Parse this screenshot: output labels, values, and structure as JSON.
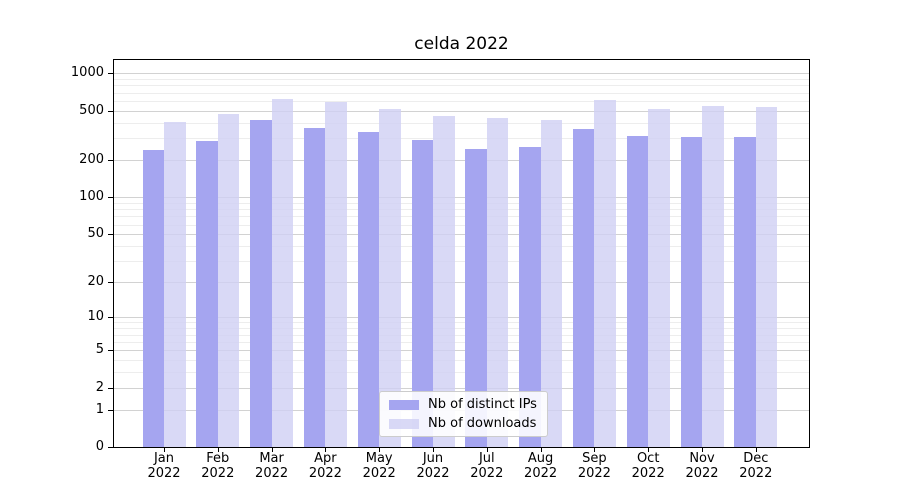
{
  "title": "celda 2022",
  "legend": {
    "position": "lower center",
    "items": [
      {
        "label": "Nb of distinct IPs",
        "color": "#a5a5f0"
      },
      {
        "label": "Nb of downloads",
        "color": "#d9d9f6"
      }
    ]
  },
  "chart_data": {
    "type": "bar",
    "title": "celda 2022",
    "yscale": "symlog (position proportional to log(1+value))",
    "grid": true,
    "categories": [
      "Jan 2022",
      "Feb 2022",
      "Mar 2022",
      "Apr 2022",
      "May 2022",
      "Jun 2022",
      "Jul 2022",
      "Aug 2022",
      "Sep 2022",
      "Oct 2022",
      "Nov 2022",
      "Dec 2022"
    ],
    "series": [
      {
        "name": "Nb of distinct IPs",
        "color": "#a5a5f0",
        "values": [
          241,
          283,
          420,
          366,
          337,
          290,
          244,
          253,
          359,
          315,
          309,
          309
        ]
      },
      {
        "name": "Nb of downloads",
        "color": "#d9d9f6",
        "values": [
          409,
          469,
          626,
          588,
          519,
          452,
          441,
          421,
          606,
          515,
          549,
          535
        ]
      }
    ],
    "yticks": [
      0,
      1,
      2,
      5,
      10,
      20,
      50,
      100,
      200,
      500,
      1000
    ],
    "minor_yticks": [
      3,
      4,
      6,
      7,
      8,
      9,
      30,
      40,
      60,
      70,
      80,
      90,
      300,
      400,
      600,
      700,
      800,
      900
    ],
    "ylim": [
      0,
      1310
    ],
    "xlabel": "",
    "ylabel": ""
  }
}
